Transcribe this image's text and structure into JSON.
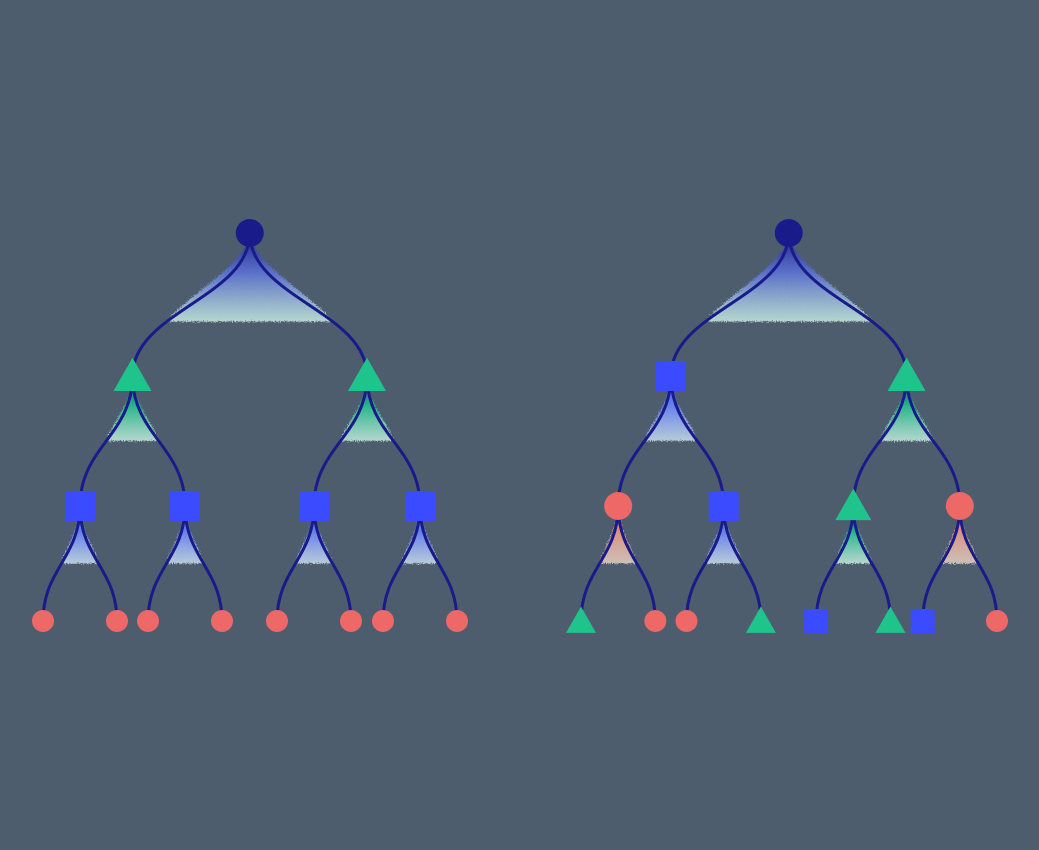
{
  "background": "#4e5d6e",
  "colors": {
    "edge": "#1a1b8a",
    "root": "#1a1b8a",
    "triangle": "#1fc48c",
    "square": "#3b4bff",
    "circle": "#ee6868",
    "mist": "#d6ffee"
  },
  "trees": [
    {
      "id": "left-tree",
      "root": {
        "shape": "circle",
        "role": "root",
        "children": [
          {
            "shape": "triangle",
            "children": [
              {
                "shape": "square",
                "children": [
                  {
                    "shape": "circle"
                  },
                  {
                    "shape": "circle"
                  }
                ]
              },
              {
                "shape": "square",
                "children": [
                  {
                    "shape": "circle"
                  },
                  {
                    "shape": "circle"
                  }
                ]
              }
            ]
          },
          {
            "shape": "triangle",
            "children": [
              {
                "shape": "square",
                "children": [
                  {
                    "shape": "circle"
                  },
                  {
                    "shape": "circle"
                  }
                ]
              },
              {
                "shape": "square",
                "children": [
                  {
                    "shape": "circle"
                  },
                  {
                    "shape": "circle"
                  }
                ]
              }
            ]
          }
        ]
      }
    },
    {
      "id": "right-tree",
      "root": {
        "shape": "circle",
        "role": "root",
        "children": [
          {
            "shape": "square",
            "children": [
              {
                "shape": "circle",
                "children": [
                  {
                    "shape": "triangle"
                  },
                  {
                    "shape": "circle"
                  }
                ]
              },
              {
                "shape": "square",
                "children": [
                  {
                    "shape": "circle"
                  },
                  {
                    "shape": "triangle"
                  }
                ]
              }
            ]
          },
          {
            "shape": "triangle",
            "children": [
              {
                "shape": "triangle",
                "children": [
                  {
                    "shape": "square"
                  },
                  {
                    "shape": "triangle"
                  }
                ]
              },
              {
                "shape": "circle",
                "children": [
                  {
                    "shape": "square"
                  },
                  {
                    "shape": "circle"
                  }
                ]
              }
            ]
          }
        ]
      }
    }
  ]
}
